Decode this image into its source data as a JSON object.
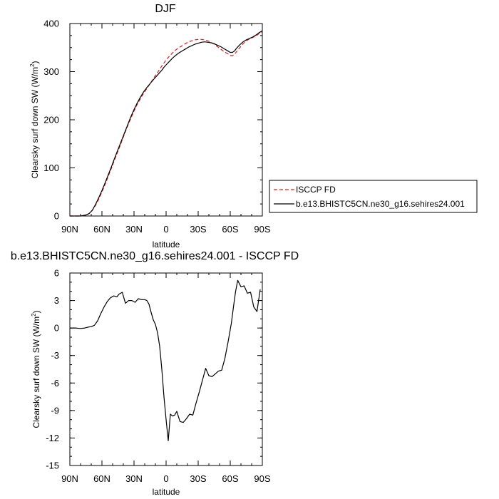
{
  "chart_data": [
    {
      "type": "line",
      "title": "DJF",
      "xlabel": "latitude",
      "ylabel": "Clearsky surf down SW (W/m",
      "ylabel_sup": "2",
      "ylabel_close": ")",
      "xlim": [
        90,
        -90
      ],
      "ylim": [
        0,
        400
      ],
      "xticks": [
        90,
        60,
        30,
        0,
        -30,
        -60,
        -90
      ],
      "xtick_labels": [
        "90N",
        "60N",
        "30N",
        "0",
        "30S",
        "60S",
        "90S"
      ],
      "yticks": [
        0,
        100,
        200,
        300,
        400
      ],
      "ytick_labels": [
        "0",
        "100",
        "200",
        "300",
        "400"
      ],
      "legend": "right",
      "series": [
        {
          "name": "ISCCP FD",
          "color": "#e31a1c",
          "dash": "dashed",
          "x": [
            90,
            85,
            80,
            75,
            72,
            69,
            66,
            63,
            60,
            57,
            54,
            51,
            48,
            45,
            42,
            39,
            36,
            33,
            30,
            27,
            24,
            21,
            18,
            15,
            12,
            10,
            8,
            6,
            4,
            2,
            0,
            -3,
            -6,
            -9,
            -12,
            -15,
            -18,
            -21,
            -24,
            -27,
            -30,
            -33,
            -36,
            -39,
            -42,
            -45,
            -48,
            -51,
            -54,
            -57,
            -60,
            -62,
            -64,
            -66,
            -69,
            -72,
            -75,
            -78,
            -81,
            -84,
            -87,
            -90
          ],
          "values": [
            0,
            0,
            0,
            2,
            5,
            12,
            22,
            35,
            50,
            66,
            83,
            100,
            118,
            135,
            152,
            170,
            187,
            203,
            218,
            232,
            244,
            255,
            265,
            275,
            285,
            292,
            298,
            305,
            312,
            318,
            324,
            332,
            339,
            345,
            350,
            354,
            358,
            362,
            364,
            366,
            367,
            367,
            366,
            364,
            361,
            357,
            352,
            347,
            342,
            338,
            334,
            333,
            336,
            342,
            350,
            358,
            364,
            368,
            371,
            374,
            379,
            383
          ]
        },
        {
          "name": "b.e13.BHISTC5CN.ne30_g16.sehires24.001",
          "color": "#000000",
          "dash": "solid",
          "x": [
            90,
            85,
            80,
            75,
            72,
            69,
            66,
            63,
            60,
            57,
            54,
            51,
            48,
            45,
            42,
            39,
            36,
            33,
            30,
            27,
            24,
            21,
            18,
            15,
            12,
            10,
            8,
            6,
            4,
            2,
            0,
            -3,
            -6,
            -9,
            -12,
            -15,
            -18,
            -21,
            -24,
            -27,
            -30,
            -33,
            -36,
            -39,
            -42,
            -45,
            -48,
            -51,
            -54,
            -57,
            -60,
            -62,
            -64,
            -66,
            -69,
            -72,
            -75,
            -78,
            -81,
            -84,
            -87,
            -90
          ],
          "values": [
            0,
            0,
            0,
            2,
            5,
            12,
            24,
            38,
            53,
            69,
            86,
            103,
            121,
            138,
            155,
            172,
            189,
            206,
            221,
            235,
            247,
            258,
            267,
            275,
            283,
            288,
            293,
            298,
            303,
            309,
            314,
            321,
            328,
            334,
            339,
            343,
            347,
            351,
            354,
            357,
            359,
            361,
            362,
            361,
            360,
            358,
            355,
            352,
            348,
            344,
            340,
            340,
            343,
            349,
            356,
            362,
            366,
            369,
            372,
            376,
            381,
            385
          ]
        }
      ]
    },
    {
      "type": "line",
      "title": "b.e13.BHISTC5CN.ne30_g16.sehires24.001 - ISCCP FD",
      "xlabel": "latitude",
      "ylabel": "Clearsky surf down SW (W/m",
      "ylabel_sup": "2",
      "ylabel_close": ")",
      "xlim": [
        90,
        -90
      ],
      "ylim": [
        -15,
        6
      ],
      "xticks": [
        90,
        60,
        30,
        0,
        -30,
        -60,
        -90
      ],
      "xtick_labels": [
        "90N",
        "60N",
        "30N",
        "0",
        "30S",
        "60S",
        "90S"
      ],
      "yticks": [
        -15,
        -12,
        -9,
        -6,
        -3,
        0,
        3,
        6
      ],
      "ytick_labels": [
        "-15",
        "-12",
        "-9",
        "-6",
        "-3",
        "0",
        "3",
        "6"
      ],
      "series": [
        {
          "color": "#000000",
          "dash": "solid",
          "x": [
            90,
            85,
            80,
            76,
            73,
            70,
            67,
            64,
            61,
            58,
            55,
            52,
            49,
            46,
            44,
            41,
            38,
            35,
            32,
            29,
            26,
            23,
            20,
            18,
            16,
            14,
            12,
            10,
            8,
            6,
            4,
            2,
            0,
            -2,
            -4,
            -6,
            -8,
            -10,
            -13,
            -16,
            -19,
            -22,
            -25,
            -28,
            -31,
            -34,
            -37,
            -40,
            -43,
            -46,
            -49,
            -52,
            -55,
            -58,
            -61,
            -63,
            -65,
            -67,
            -70,
            -73,
            -76,
            -79,
            -82,
            -85,
            -88
          ],
          "values": [
            0,
            0,
            -0.05,
            0,
            0.1,
            0.15,
            0.3,
            0.8,
            1.6,
            2.3,
            2.9,
            3.3,
            3.5,
            3.4,
            3.7,
            3.9,
            2.7,
            3.0,
            3.0,
            2.8,
            3.2,
            3.1,
            3.1,
            3.0,
            2.6,
            1.7,
            0.9,
            0.4,
            -0.5,
            -2.0,
            -4.5,
            -7.5,
            -10.0,
            -12.3,
            -9.4,
            -9.6,
            -9.5,
            -9.1,
            -10.2,
            -10.3,
            -9.9,
            -9.4,
            -9.5,
            -8.2,
            -7.0,
            -5.7,
            -4.4,
            -5.2,
            -5.3,
            -5.0,
            -4.7,
            -4.6,
            -3.3,
            -1.5,
            0.5,
            2.3,
            4.0,
            5.2,
            4.5,
            4.6,
            3.8,
            3.9,
            2.3,
            1.8,
            4.2
          ]
        }
      ]
    }
  ]
}
